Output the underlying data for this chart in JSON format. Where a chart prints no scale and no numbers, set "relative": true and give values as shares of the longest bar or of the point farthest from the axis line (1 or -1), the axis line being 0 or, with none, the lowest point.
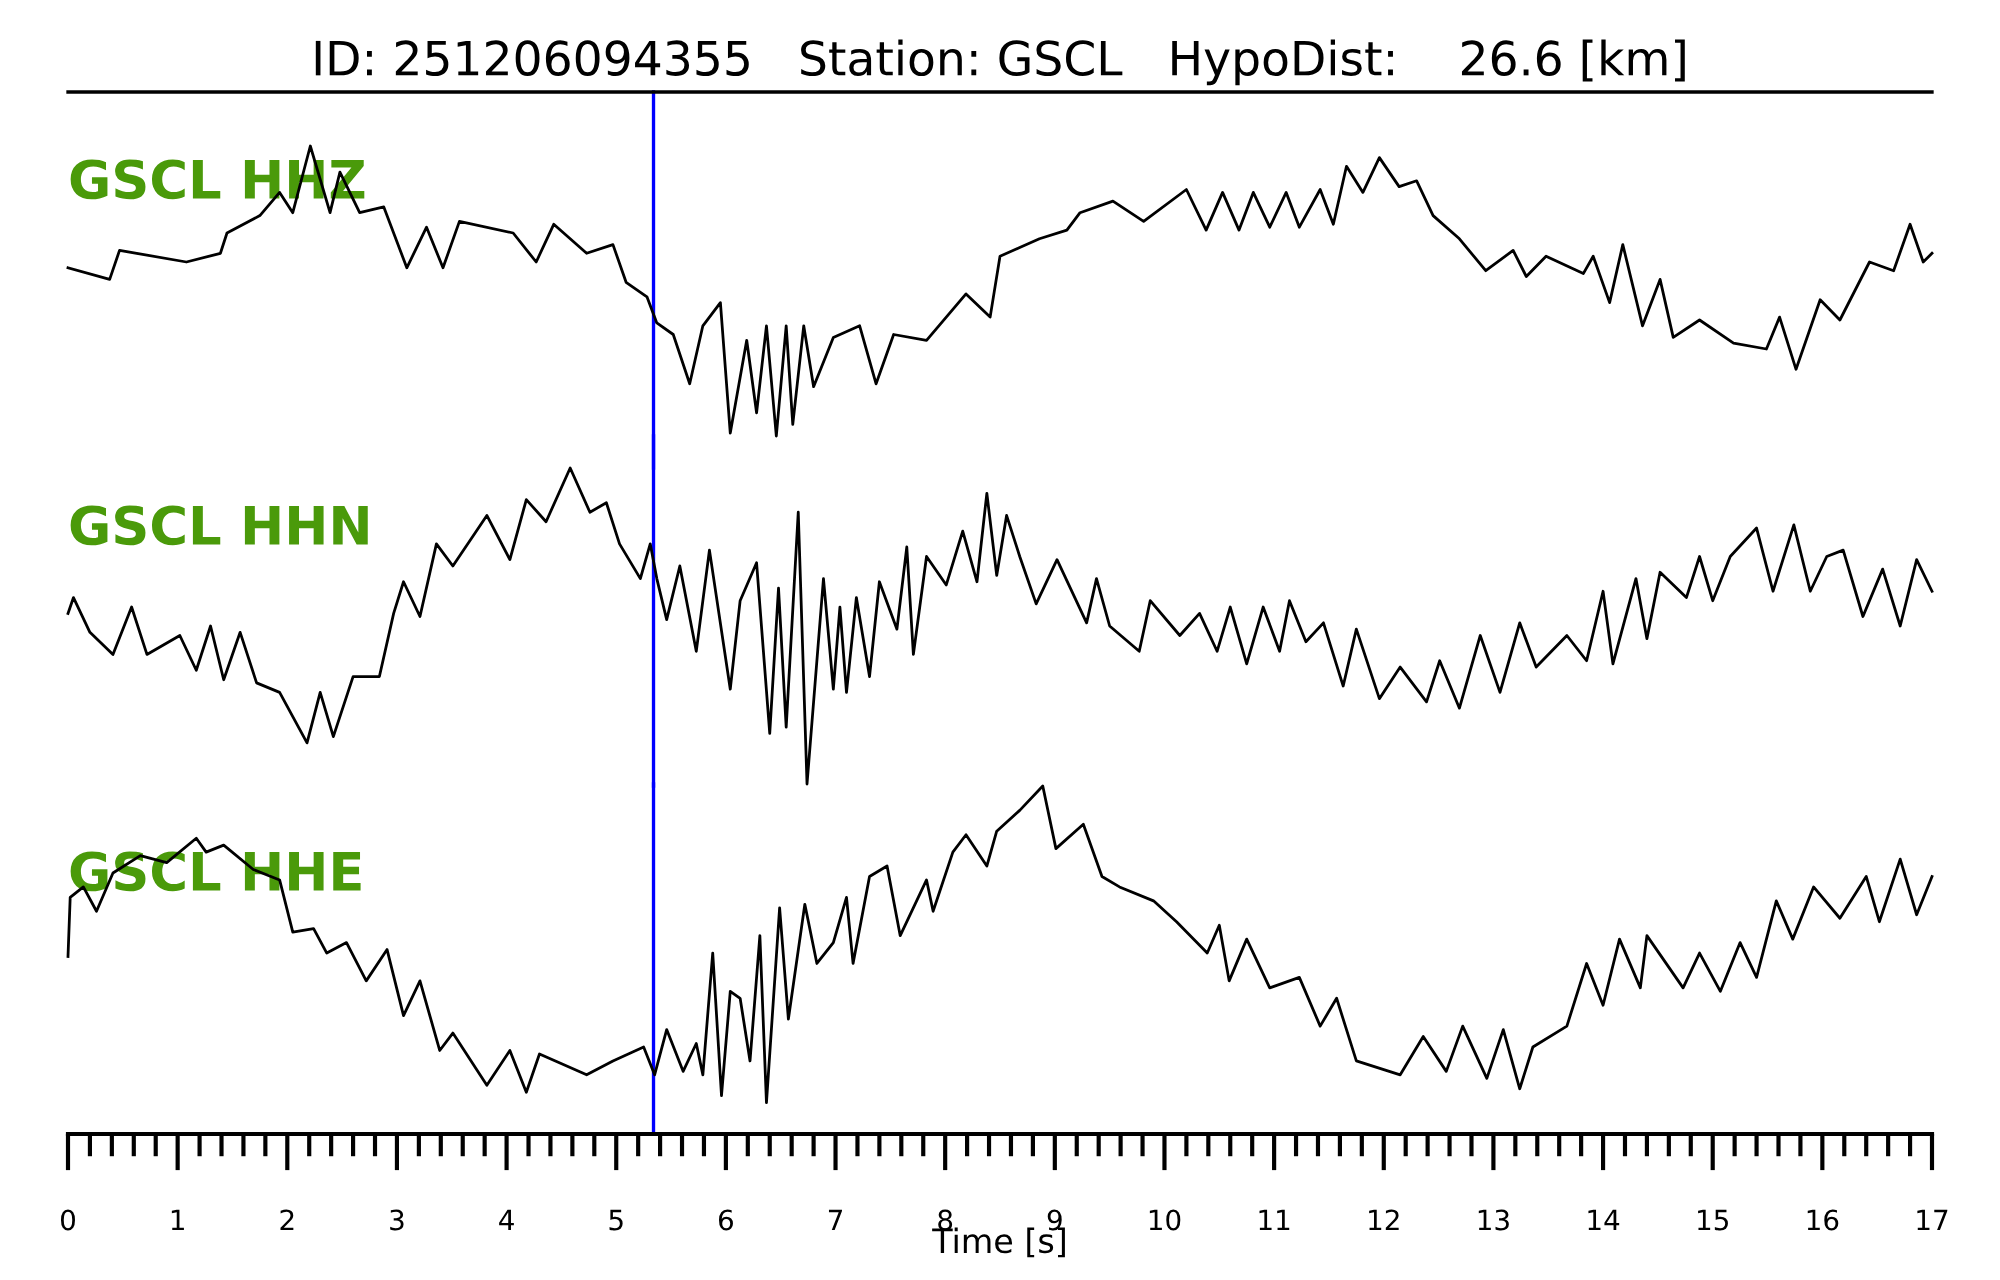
{
  "chart_data": [
    {
      "type": "line",
      "title": "ID: 251206094355   Station: GSCL   HypoDist:    26.6 [km]",
      "relative": true,
      "xlim": [
        0,
        17
      ],
      "tick_labels": false,
      "annotations": [
        "GSCL HHZ"
      ],
      "ref_lines": [
        {
          "axis": "x",
          "value": 5.34,
          "color": "#0000ff"
        }
      ],
      "series": [
        {
          "color": "#000000",
          "x": [
            0,
            0.38,
            0.47,
            1.08,
            1.39,
            1.45,
            1.75,
            1.93,
            2.05,
            2.21,
            2.39,
            2.48,
            2.66,
            2.88,
            3.09,
            3.27,
            3.42,
            3.57,
            4.06,
            4.27,
            4.43,
            4.73,
            4.97,
            5.09,
            5.28,
            5.37,
            5.52,
            5.67,
            5.79,
            5.95,
            6.04,
            6.19,
            6.28,
            6.37,
            6.46,
            6.55,
            6.61,
            6.71,
            6.8,
            6.98,
            7.22,
            7.37,
            7.53,
            7.83,
            8.19,
            8.41,
            8.5,
            8.68,
            8.86,
            9.11,
            9.23,
            9.53,
            9.81,
            10.2,
            10.38,
            10.53,
            10.68,
            10.81,
            10.96,
            11.11,
            11.23,
            11.42,
            11.54,
            11.66,
            11.81,
            11.96,
            12.14,
            12.3,
            12.45,
            12.69,
            12.93,
            13.18,
            13.3,
            13.48,
            13.82,
            13.91,
            14.06,
            14.18,
            14.36,
            14.52,
            14.64,
            14.88,
            15.19,
            15.49,
            15.61,
            15.76,
            15.98,
            16.16,
            16.43,
            16.65,
            16.8,
            16.92,
            17.0
          ],
          "values": [
            0.58,
            0.54,
            0.64,
            0.6,
            0.63,
            0.7,
            0.76,
            0.84,
            0.77,
            1.0,
            0.77,
            0.91,
            0.77,
            0.79,
            0.58,
            0.72,
            0.58,
            0.74,
            0.7,
            0.6,
            0.73,
            0.63,
            0.66,
            0.53,
            0.48,
            0.39,
            0.35,
            0.18,
            0.38,
            0.46,
            0.01,
            0.33,
            0.08,
            0.38,
            0,
            0.38,
            0.04,
            0.38,
            0.17,
            0.34,
            0.38,
            0.18,
            0.35,
            0.33,
            0.49,
            0.41,
            0.62,
            0.65,
            0.68,
            0.71,
            0.77,
            0.81,
            0.74,
            0.85,
            0.71,
            0.84,
            0.71,
            0.84,
            0.72,
            0.84,
            0.72,
            0.85,
            0.73,
            0.93,
            0.84,
            0.96,
            0.86,
            0.88,
            0.76,
            0.68,
            0.57,
            0.64,
            0.55,
            0.62,
            0.56,
            0.62,
            0.46,
            0.66,
            0.38,
            0.54,
            0.34,
            0.4,
            0.32,
            0.3,
            0.41,
            0.23,
            0.47,
            0.4,
            0.6,
            0.57,
            0.73,
            0.6,
            0.63
          ]
        }
      ]
    },
    {
      "type": "line",
      "relative": true,
      "xlim": [
        0,
        17
      ],
      "tick_labels": false,
      "annotations": [
        "GSCL HHN"
      ],
      "ref_lines": [
        {
          "axis": "x",
          "value": 5.34,
          "color": "#0000ff"
        }
      ],
      "series": [
        {
          "color": "#000000",
          "x": [
            0,
            0.05,
            0.2,
            0.41,
            0.58,
            0.72,
            1.02,
            1.17,
            1.3,
            1.42,
            1.57,
            1.72,
            1.93,
            2.18,
            2.3,
            2.42,
            2.6,
            2.84,
            2.97,
            3.06,
            3.21,
            3.36,
            3.51,
            3.82,
            4.03,
            4.18,
            4.36,
            4.58,
            4.76,
            4.91,
            5.03,
            5.22,
            5.31,
            5.37,
            5.46,
            5.58,
            5.73,
            5.85,
            6.04,
            6.13,
            6.28,
            6.4,
            6.48,
            6.55,
            6.66,
            6.74,
            6.89,
            6.98,
            7.04,
            7.1,
            7.19,
            7.31,
            7.4,
            7.56,
            7.65,
            7.71,
            7.83,
            8.01,
            8.16,
            8.29,
            8.38,
            8.47,
            8.56,
            8.68,
            8.83,
            9.02,
            9.29,
            9.38,
            9.5,
            9.77,
            9.87,
            10.14,
            10.32,
            10.48,
            10.6,
            10.75,
            10.9,
            11.05,
            11.14,
            11.29,
            11.45,
            11.63,
            11.75,
            11.96,
            12.15,
            12.39,
            12.51,
            12.69,
            12.88,
            13.06,
            13.24,
            13.39,
            13.67,
            13.85,
            14.0,
            14.09,
            14.3,
            14.4,
            14.52,
            14.76,
            14.88,
            15.0,
            15.16,
            15.4,
            15.55,
            15.74,
            15.89,
            16.04,
            16.19,
            16.37,
            16.55,
            16.71,
            16.86,
            17.0
          ],
          "values": [
            0.54,
            0.59,
            0.48,
            0.41,
            0.56,
            0.41,
            0.47,
            0.36,
            0.5,
            0.33,
            0.48,
            0.32,
            0.29,
            0.13,
            0.29,
            0.15,
            0.34,
            0.34,
            0.54,
            0.64,
            0.53,
            0.76,
            0.69,
            0.85,
            0.71,
            0.9,
            0.83,
            1.0,
            0.86,
            0.89,
            0.76,
            0.65,
            0.76,
            0.65,
            0.52,
            0.69,
            0.42,
            0.74,
            0.3,
            0.58,
            0.7,
            0.16,
            0.62,
            0.18,
            0.86,
            0,
            0.65,
            0.3,
            0.56,
            0.29,
            0.59,
            0.34,
            0.64,
            0.49,
            0.75,
            0.41,
            0.72,
            0.63,
            0.8,
            0.64,
            0.92,
            0.66,
            0.85,
            0.72,
            0.57,
            0.71,
            0.51,
            0.65,
            0.5,
            0.42,
            0.58,
            0.47,
            0.54,
            0.42,
            0.56,
            0.38,
            0.56,
            0.42,
            0.58,
            0.45,
            0.51,
            0.31,
            0.49,
            0.27,
            0.37,
            0.26,
            0.39,
            0.24,
            0.47,
            0.29,
            0.51,
            0.37,
            0.47,
            0.39,
            0.61,
            0.38,
            0.65,
            0.46,
            0.67,
            0.59,
            0.72,
            0.58,
            0.72,
            0.81,
            0.61,
            0.82,
            0.61,
            0.72,
            0.74,
            0.53,
            0.68,
            0.5,
            0.71,
            0.61
          ]
        }
      ]
    },
    {
      "type": "line",
      "relative": true,
      "xlim": [
        0,
        17
      ],
      "xticks": [
        0,
        1,
        2,
        3,
        4,
        5,
        6,
        7,
        8,
        9,
        10,
        11,
        12,
        13,
        14,
        15,
        16,
        17
      ],
      "xlabel": "Time [s]",
      "tick_labels": "x",
      "annotations": [
        "GSCL HHE"
      ],
      "ref_lines": [
        {
          "axis": "x",
          "value": 5.34,
          "color": "#0000ff"
        }
      ],
      "series": [
        {
          "color": "#000000",
          "x": [
            0,
            0.02,
            0.14,
            0.26,
            0.41,
            0.66,
            0.9,
            1.17,
            1.26,
            1.42,
            1.69,
            1.93,
            2.05,
            2.24,
            2.36,
            2.54,
            2.72,
            2.91,
            3.06,
            3.21,
            3.39,
            3.51,
            3.82,
            4.03,
            4.18,
            4.3,
            4.73,
            4.97,
            5.25,
            5.35,
            5.46,
            5.61,
            5.73,
            5.79,
            5.88,
            5.96,
            6.04,
            6.13,
            6.22,
            6.31,
            6.37,
            6.49,
            6.57,
            6.72,
            6.83,
            6.98,
            7.1,
            7.16,
            7.31,
            7.47,
            7.59,
            7.83,
            7.89,
            8.07,
            8.19,
            8.38,
            8.47,
            8.68,
            8.89,
            9.01,
            9.26,
            9.43,
            9.59,
            9.9,
            10.11,
            10.39,
            10.5,
            10.59,
            10.75,
            10.96,
            11.23,
            11.42,
            11.57,
            11.75,
            12.15,
            12.36,
            12.57,
            12.72,
            12.94,
            13.09,
            13.24,
            13.36,
            13.67,
            13.85,
            14.0,
            14.15,
            14.34,
            14.4,
            14.73,
            14.88,
            15.07,
            15.25,
            15.4,
            15.58,
            15.73,
            15.92,
            16.16,
            16.4,
            16.52,
            16.71,
            16.86,
            17.0
          ],
          "values": [
            0.51,
            0.68,
            0.71,
            0.64,
            0.75,
            0.8,
            0.78,
            0.85,
            0.81,
            0.83,
            0.76,
            0.73,
            0.58,
            0.59,
            0.52,
            0.55,
            0.44,
            0.53,
            0.34,
            0.44,
            0.24,
            0.29,
            0.14,
            0.24,
            0.12,
            0.23,
            0.17,
            0.21,
            0.25,
            0.17,
            0.3,
            0.18,
            0.26,
            0.17,
            0.52,
            0.11,
            0.41,
            0.39,
            0.21,
            0.57,
            0.09,
            0.65,
            0.33,
            0.66,
            0.49,
            0.55,
            0.68,
            0.49,
            0.74,
            0.77,
            0.57,
            0.73,
            0.64,
            0.81,
            0.86,
            0.77,
            0.87,
            0.93,
            1.0,
            0.82,
            0.89,
            0.74,
            0.71,
            0.67,
            0.61,
            0.52,
            0.6,
            0.44,
            0.56,
            0.42,
            0.45,
            0.31,
            0.39,
            0.21,
            0.17,
            0.28,
            0.18,
            0.31,
            0.16,
            0.3,
            0.13,
            0.25,
            0.31,
            0.49,
            0.37,
            0.56,
            0.42,
            0.57,
            0.42,
            0.52,
            0.41,
            0.55,
            0.45,
            0.67,
            0.56,
            0.71,
            0.62,
            0.74,
            0.61,
            0.79,
            0.63,
            0.74
          ]
        }
      ]
    }
  ]
}
